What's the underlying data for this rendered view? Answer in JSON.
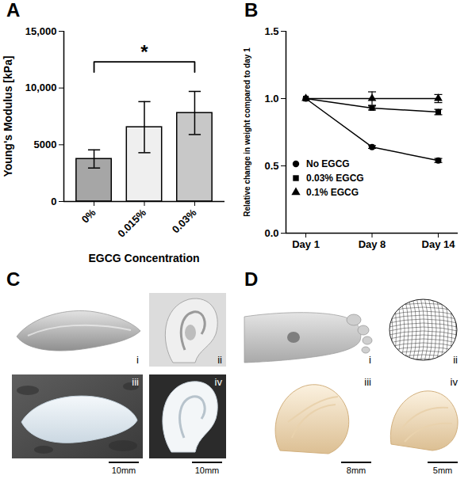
{
  "chart_data": [
    {
      "panel_label": "A",
      "type": "bar",
      "categories": [
        "0%",
        "0.015%",
        "0.03%"
      ],
      "values": [
        3750,
        6550,
        7800
      ],
      "errors": [
        800,
        2250,
        1900
      ],
      "colors": [
        "#a6a6a6",
        "#efefef",
        "#c8c8c8"
      ],
      "x_label": "EGCG Concentration",
      "y_label": "Young's Modulus [kPa]",
      "ylim": [
        0,
        15000
      ],
      "yticks": [
        0,
        5000,
        {
          "value": 10000,
          "label": "10,000"
        },
        {
          "value": 15000,
          "label": "15,000"
        }
      ],
      "annotations": [
        {
          "text": "*",
          "from": "0%",
          "to": "0.03%",
          "y": 12300
        }
      ]
    },
    {
      "panel_label": "B",
      "type": "line",
      "categories": [
        "Day 1",
        "Day 8",
        "Day 14"
      ],
      "y_label": "Relative change in weight compared to day 1",
      "ylim": [
        0,
        1.5
      ],
      "yticks": [
        {
          "value": 0,
          "label": "0.0"
        },
        {
          "value": 0.5,
          "label": "0.5"
        },
        {
          "value": 1,
          "label": "1.0"
        },
        {
          "value": 1.5,
          "label": "1.5"
        }
      ],
      "legend": "left",
      "series": [
        {
          "name": "No EGCG",
          "color": "#000000",
          "marker": "circle",
          "values": [
            1,
            0.64,
            0.54
          ],
          "errors": [
            0,
            0.01,
            0.015
          ]
        },
        {
          "name": "0.03% EGCG",
          "color": "#000000",
          "marker": "square",
          "values": [
            1,
            0.93,
            0.9
          ],
          "errors": [
            0,
            0.015,
            0.02
          ]
        },
        {
          "name": "0.1% EGCG",
          "color": "#000000",
          "marker": "triangle",
          "values": [
            1,
            1,
            1
          ],
          "errors": [
            0,
            0.05,
            0.03
          ]
        }
      ]
    }
  ],
  "image_panels": [
    {
      "panel_label": "C",
      "images": [
        {
          "label": "i"
        },
        {
          "label": "ii"
        },
        {
          "label": "iii",
          "scale_bar": "10mm"
        },
        {
          "label": "iv",
          "scale_bar": "10mm"
        }
      ]
    },
    {
      "panel_label": "D",
      "images": [
        {
          "label": "i"
        },
        {
          "label": "ii"
        },
        {
          "label": "iii",
          "scale_bar": "8mm"
        },
        {
          "label": "iv",
          "scale_bar": "5mm"
        }
      ]
    }
  ]
}
